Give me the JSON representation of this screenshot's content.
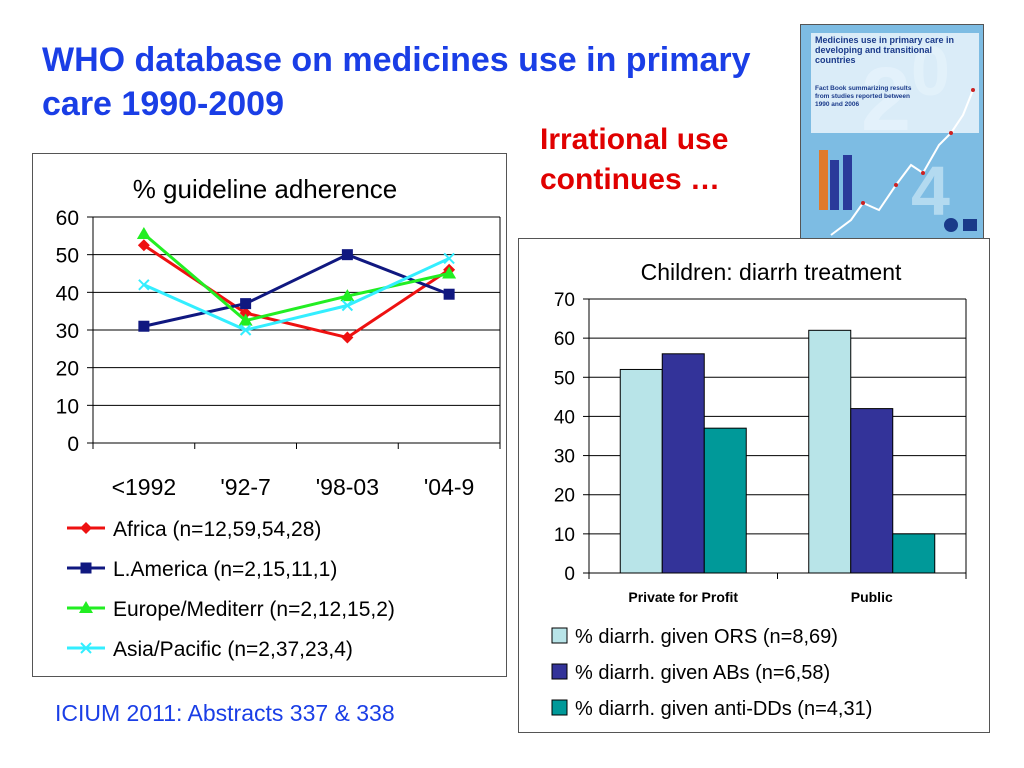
{
  "slide": {
    "title": "WHO database on medicines use in primary care 1990-2009",
    "callout": "Irrational use continues …",
    "footer": "ICIUM 2011: Abstracts 337 & 338",
    "cover_title": "Medicines use in primary care in developing and transitional countries",
    "cover_subtitle": "Fact Book summarizing results from studies reported between 1990 and 2006"
  },
  "chart_data": [
    {
      "type": "line",
      "title": "% guideline adherence",
      "xlabel": "",
      "ylabel": "",
      "categories": [
        "<1992",
        "'92-7",
        "'98-03",
        "'04-9"
      ],
      "ylim": [
        0,
        60
      ],
      "yticks": [
        "0",
        "10",
        "20",
        "30",
        "40",
        "50",
        "60"
      ],
      "grid": true,
      "legend_position": "bottom",
      "series": [
        {
          "name": "Africa (n=12,59,54,28)",
          "values": [
            52.5,
            34.5,
            28,
            46
          ],
          "color": "#ee1111",
          "marker": "diamond"
        },
        {
          "name": "L.America (n=2,15,11,1)",
          "values": [
            31,
            37,
            50,
            39.5
          ],
          "color": "#101880",
          "marker": "square"
        },
        {
          "name": "Europe/Mediterr (n=2,12,15,2)",
          "values": [
            55.5,
            32.5,
            39,
            45
          ],
          "color": "#22ee22",
          "marker": "triangle"
        },
        {
          "name": "Asia/Pacific (n=2,37,23,4)",
          "values": [
            42,
            30,
            36.5,
            49
          ],
          "color": "#33eeff",
          "marker": "x"
        }
      ]
    },
    {
      "type": "bar",
      "title": "Children: diarrh treatment",
      "xlabel": "",
      "ylabel": "",
      "categories": [
        "Private for Profit",
        "Public"
      ],
      "ylim": [
        0,
        70
      ],
      "yticks": [
        "0",
        "10",
        "20",
        "30",
        "40",
        "50",
        "60",
        "70"
      ],
      "grid": true,
      "legend_position": "bottom",
      "series": [
        {
          "name": "% diarrh. given ORS (n=8,69)",
          "values": [
            52,
            62
          ],
          "color": "#b8e4e8"
        },
        {
          "name": "% diarrh. given ABs (n=6,58)",
          "values": [
            56,
            42
          ],
          "color": "#333399"
        },
        {
          "name": "% diarrh. given anti-DDs (n=4,31)",
          "values": [
            37,
            10
          ],
          "color": "#009999"
        }
      ]
    }
  ]
}
